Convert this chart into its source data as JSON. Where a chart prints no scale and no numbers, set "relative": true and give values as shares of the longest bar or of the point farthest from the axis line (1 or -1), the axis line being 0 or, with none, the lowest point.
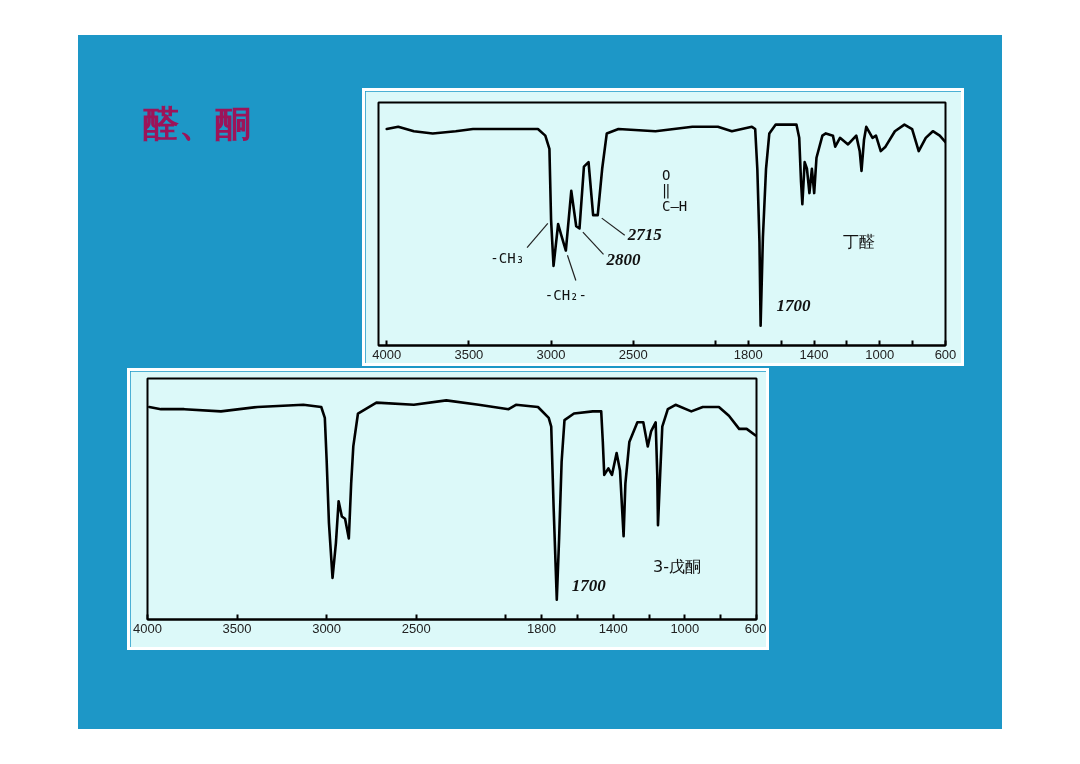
{
  "chart_data": [
    {
      "type": "line",
      "title": "醛、酮",
      "relative": true,
      "color": "#000000",
      "line_style": "solid",
      "tick_labels": "x",
      "xlim": [
        4050,
        600
      ],
      "xticks": [
        4000,
        3500,
        3000,
        2500,
        {
          "value": 2000,
          "label": null
        },
        1800,
        {
          "value": 1600,
          "label": null
        },
        1400,
        {
          "value": 1200,
          "label": null
        },
        1000,
        {
          "value": 800,
          "label": null
        },
        600
      ],
      "x": [
        4000,
        3930,
        3835,
        3720,
        3580,
        3475,
        3265,
        3080,
        3035,
        3010,
        3000,
        2985,
        2957,
        2938,
        2910,
        2877,
        2847,
        2827,
        2800,
        2772,
        2744,
        2716,
        2689,
        2661,
        2590,
        2365,
        2140,
        1985,
        1900,
        1778,
        1758,
        1745,
        1732,
        1725,
        1711,
        1692,
        1672,
        1633,
        1507,
        1490,
        1479,
        1471,
        1457,
        1443,
        1428,
        1413,
        1399,
        1385,
        1349,
        1328,
        1285,
        1271,
        1242,
        1193,
        1143,
        1122,
        1111,
        1096,
        1082,
        1044,
        1023,
        994,
        965,
        908,
        850,
        803,
        763,
        720,
        677,
        635,
        600
      ],
      "values": [
        0.98,
        0.99,
        0.97,
        0.96,
        0.97,
        0.98,
        0.98,
        0.98,
        0.95,
        0.89,
        0.57,
        0.36,
        0.55,
        0.5,
        0.43,
        0.7,
        0.54,
        0.53,
        0.81,
        0.83,
        0.59,
        0.59,
        0.8,
        0.96,
        0.98,
        0.97,
        0.99,
        0.99,
        0.97,
        0.99,
        0.98,
        0.8,
        0.47,
        0.09,
        0.49,
        0.8,
        0.96,
        1.0,
        1.0,
        0.94,
        0.74,
        0.64,
        0.83,
        0.8,
        0.69,
        0.8,
        0.69,
        0.85,
        0.95,
        0.96,
        0.95,
        0.9,
        0.94,
        0.91,
        0.95,
        0.88,
        0.79,
        0.93,
        0.99,
        0.94,
        0.95,
        0.88,
        0.9,
        0.97,
        1.0,
        0.98,
        0.88,
        0.94,
        0.97,
        0.95,
        0.92
      ],
      "annotations": [
        {
          "text": "-CH₃",
          "x": 3000,
          "y": 0.57
        },
        {
          "text": "-CH₂-",
          "x": 2910,
          "y": 0.43
        },
        {
          "text": "2800",
          "x": 2827,
          "y": 0.53
        },
        {
          "text": "2715",
          "x": 2716,
          "y": 0.59
        },
        "O",
        "‖",
        "C—H",
        {
          "text": "1700",
          "x": 1725,
          "y": 0.09
        },
        "丁醛"
      ]
    },
    {
      "type": "line",
      "relative": true,
      "color": "#000000",
      "line_style": "solid",
      "tick_labels": "x",
      "xlim": [
        4000,
        600
      ],
      "xticks": [
        4000,
        3500,
        3000,
        2500,
        {
          "value": 2000,
          "label": null
        },
        1800,
        {
          "value": 1600,
          "label": null
        },
        1400,
        {
          "value": 1200,
          "label": null
        },
        1000,
        {
          "value": 800,
          "label": null
        },
        600
      ],
      "x": [
        3990,
        3925,
        3795,
        3590,
        3385,
        3130,
        3030,
        3010,
        3000,
        2987,
        2967,
        2948,
        2933,
        2915,
        2897,
        2876,
        2863,
        2851,
        2825,
        2722,
        2513,
        2332,
        2151,
        1984,
        1943,
        1820,
        1760,
        1746,
        1733,
        1715,
        1702,
        1688,
        1672,
        1619,
        1514,
        1467,
        1458,
        1450,
        1427,
        1407,
        1381,
        1362,
        1342,
        1332,
        1310,
        1265,
        1232,
        1207,
        1188,
        1163,
        1154,
        1150,
        1138,
        1126,
        1095,
        1052,
        964,
        900,
        810,
        754,
        697,
        655,
        605
      ],
      "values": [
        0.97,
        0.96,
        0.96,
        0.95,
        0.97,
        0.98,
        0.97,
        0.92,
        0.73,
        0.44,
        0.19,
        0.35,
        0.54,
        0.47,
        0.46,
        0.37,
        0.62,
        0.79,
        0.94,
        0.99,
        0.98,
        1.0,
        0.98,
        0.96,
        0.98,
        0.97,
        0.92,
        0.88,
        0.52,
        0.09,
        0.37,
        0.72,
        0.91,
        0.94,
        0.95,
        0.95,
        0.81,
        0.66,
        0.69,
        0.66,
        0.76,
        0.68,
        0.38,
        0.62,
        0.81,
        0.9,
        0.9,
        0.79,
        0.86,
        0.9,
        0.66,
        0.43,
        0.66,
        0.88,
        0.96,
        0.98,
        0.95,
        0.97,
        0.97,
        0.93,
        0.87,
        0.87,
        0.84
      ],
      "annotations": [
        {
          "text": "1700",
          "x": 1715,
          "y": 0.09
        },
        "3-戊酮"
      ]
    }
  ]
}
